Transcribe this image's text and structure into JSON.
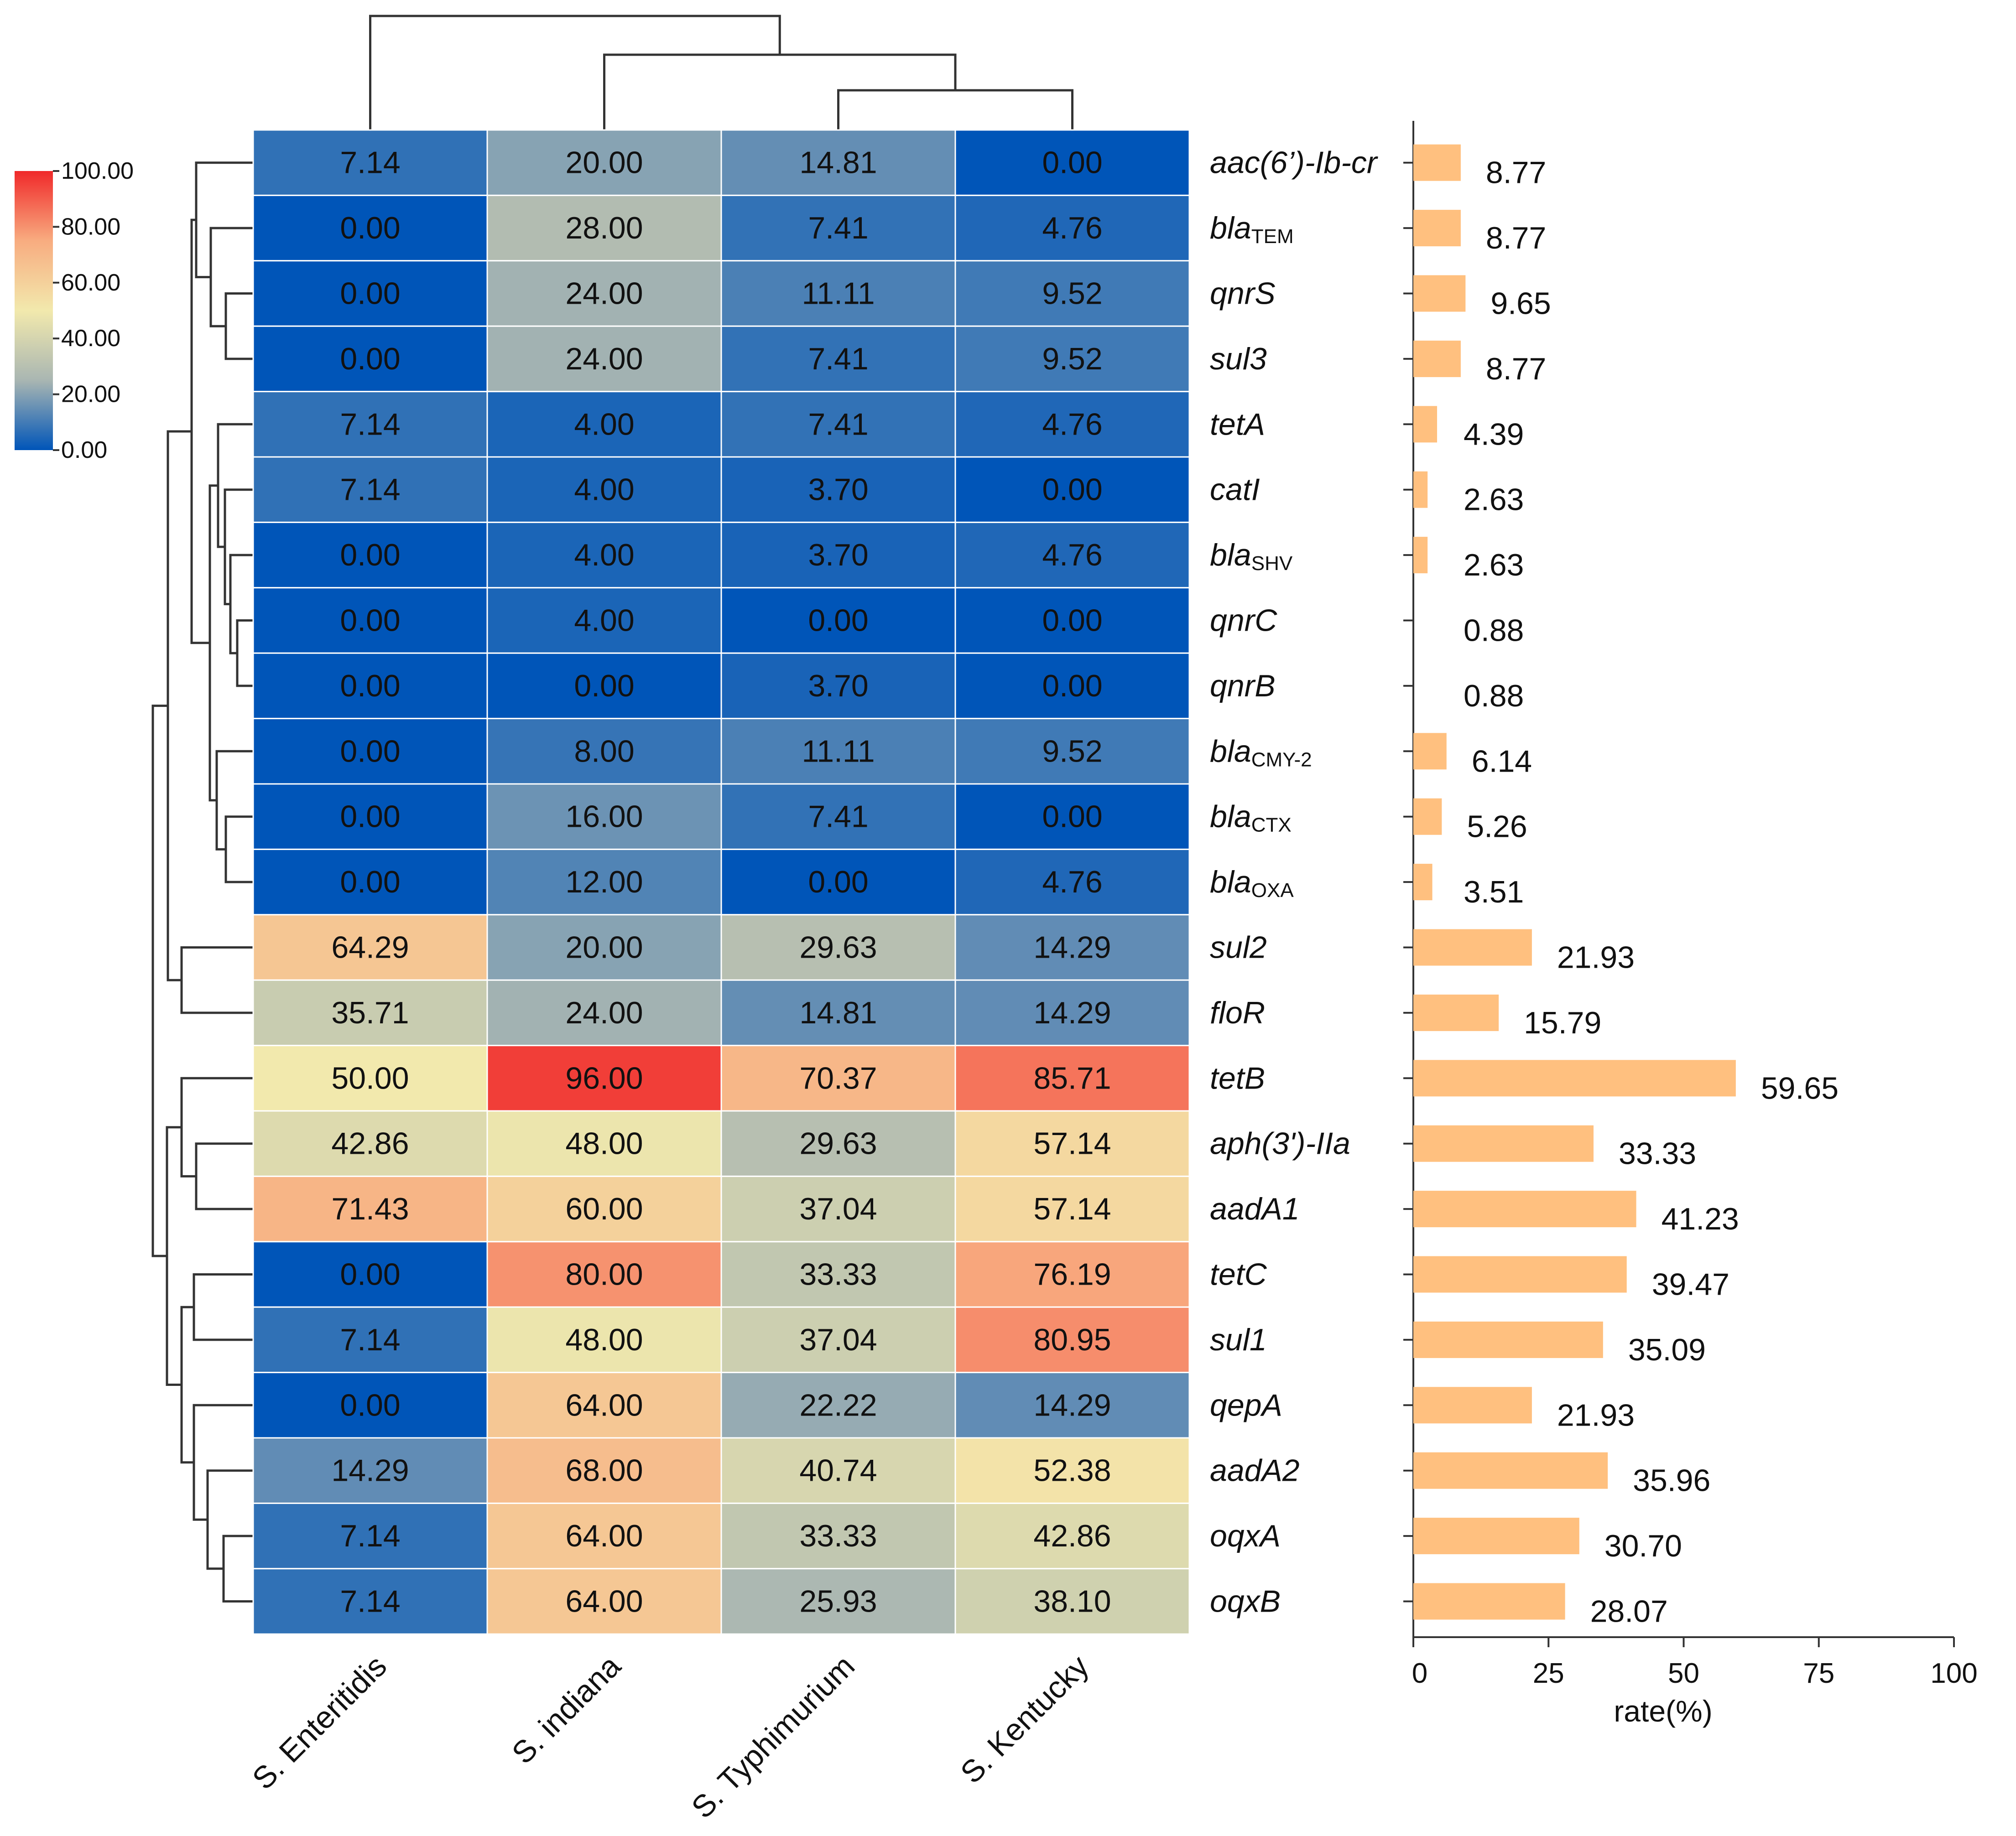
{
  "chart_data": [
    {
      "type": "heatmap",
      "columns": [
        "S. Enteritidis",
        "S. indiana",
        "S. Typhimurium",
        "S. Kentucky"
      ],
      "rows": [
        {
          "gene": "aac(6’)-Ib-cr",
          "base": "aac(6’)-Ib-cr",
          "sub": "",
          "values": [
            "7.14",
            "20.00",
            "14.81",
            "0.00"
          ]
        },
        {
          "gene": "blaTEM",
          "base": "bla",
          "sub": "TEM",
          "values": [
            "0.00",
            "28.00",
            "7.41",
            "4.76"
          ]
        },
        {
          "gene": "qnrS",
          "base": "qnrS",
          "sub": "",
          "values": [
            "0.00",
            "24.00",
            "11.11",
            "9.52"
          ]
        },
        {
          "gene": "sul3",
          "base": "sul3",
          "sub": "",
          "values": [
            "0.00",
            "24.00",
            "7.41",
            "9.52"
          ]
        },
        {
          "gene": "tetA",
          "base": "tetA",
          "sub": "",
          "values": [
            "7.14",
            "4.00",
            "7.41",
            "4.76"
          ]
        },
        {
          "gene": "catI",
          "base": "catI",
          "sub": "",
          "values": [
            "7.14",
            "4.00",
            "3.70",
            "0.00"
          ]
        },
        {
          "gene": "blaSHV",
          "base": "bla",
          "sub": "SHV",
          "values": [
            "0.00",
            "4.00",
            "3.70",
            "4.76"
          ]
        },
        {
          "gene": "qnrC",
          "base": "qnrC",
          "sub": "",
          "values": [
            "0.00",
            "4.00",
            "0.00",
            "0.00"
          ]
        },
        {
          "gene": "qnrB",
          "base": "qnrB",
          "sub": "",
          "values": [
            "0.00",
            "0.00",
            "3.70",
            "0.00"
          ]
        },
        {
          "gene": "blaCMY-2",
          "base": "bla",
          "sub": "CMY-2",
          "values": [
            "0.00",
            "8.00",
            "11.11",
            "9.52"
          ]
        },
        {
          "gene": "blaCTX",
          "base": "bla",
          "sub": "CTX",
          "values": [
            "0.00",
            "16.00",
            "7.41",
            "0.00"
          ]
        },
        {
          "gene": "blaOXA",
          "base": "bla",
          "sub": "OXA",
          "values": [
            "0.00",
            "12.00",
            "0.00",
            "4.76"
          ]
        },
        {
          "gene": "sul2",
          "base": "sul2",
          "sub": "",
          "values": [
            "64.29",
            "20.00",
            "29.63",
            "14.29"
          ]
        },
        {
          "gene": "floR",
          "base": "floR",
          "sub": "",
          "values": [
            "35.71",
            "24.00",
            "14.81",
            "14.29"
          ]
        },
        {
          "gene": "tetB",
          "base": "tetB",
          "sub": "",
          "values": [
            "50.00",
            "96.00",
            "70.37",
            "85.71"
          ]
        },
        {
          "gene": "aph(3')-IIa",
          "base": "aph(3')-IIa",
          "sub": "",
          "values": [
            "42.86",
            "48.00",
            "29.63",
            "57.14"
          ]
        },
        {
          "gene": "aadA1",
          "base": "aadA1",
          "sub": "",
          "values": [
            "71.43",
            "60.00",
            "37.04",
            "57.14"
          ]
        },
        {
          "gene": "tetC",
          "base": "tetC",
          "sub": "",
          "values": [
            "0.00",
            "80.00",
            "33.33",
            "76.19"
          ]
        },
        {
          "gene": "sul1",
          "base": "sul1",
          "sub": "",
          "values": [
            "7.14",
            "48.00",
            "37.04",
            "80.95"
          ]
        },
        {
          "gene": "qepA",
          "base": "qepA",
          "sub": "",
          "values": [
            "0.00",
            "64.00",
            "22.22",
            "14.29"
          ]
        },
        {
          "gene": "aadA2",
          "base": "aadA2",
          "sub": "",
          "values": [
            "14.29",
            "68.00",
            "40.74",
            "52.38"
          ]
        },
        {
          "gene": "oqxA",
          "base": "oqxA",
          "sub": "",
          "values": [
            "7.14",
            "64.00",
            "33.33",
            "42.86"
          ]
        },
        {
          "gene": "oqxB",
          "base": "oqxB",
          "sub": "",
          "values": [
            "7.14",
            "64.00",
            "25.93",
            "38.10"
          ]
        }
      ],
      "colorbar": {
        "ticks": [
          "100.00",
          "80.00",
          "60.00",
          "40.00",
          "20.00",
          "0.00"
        ],
        "range": [
          0,
          100
        ],
        "stops": [
          "#0055b8",
          "#a9b6b2",
          "#f2e9ad",
          "#f8ac80",
          "#f0292a"
        ]
      },
      "row_dendrogram": true,
      "col_dendrogram": true
    },
    {
      "type": "bar",
      "orientation": "horizontal",
      "categories": [
        "aac(6’)-Ib-cr",
        "blaTEM",
        "qnrS",
        "sul3",
        "tetA",
        "catI",
        "blaSHV",
        "qnrC",
        "qnrB",
        "blaCMY-2",
        "blaCTX",
        "blaOXA",
        "sul2",
        "floR",
        "tetB",
        "aph(3')-IIa",
        "aadA1",
        "tetC",
        "sul1",
        "qepA",
        "aadA2",
        "oqxA",
        "oqxB"
      ],
      "values": [
        "8.77",
        "8.77",
        "9.65",
        "8.77",
        "4.39",
        "2.63",
        "2.63",
        "0.88",
        "0.88",
        "6.14",
        "5.26",
        "3.51",
        "21.93",
        "15.79",
        "59.65",
        "33.33",
        "41.23",
        "39.47",
        "35.09",
        "21.93",
        "35.96",
        "30.70",
        "28.07"
      ],
      "xlim": [
        0,
        100
      ],
      "xticks": [
        "0",
        "25",
        "50",
        "75",
        "100"
      ],
      "xlabel": "rate(%)",
      "bar_color": "#ffc07f"
    }
  ]
}
